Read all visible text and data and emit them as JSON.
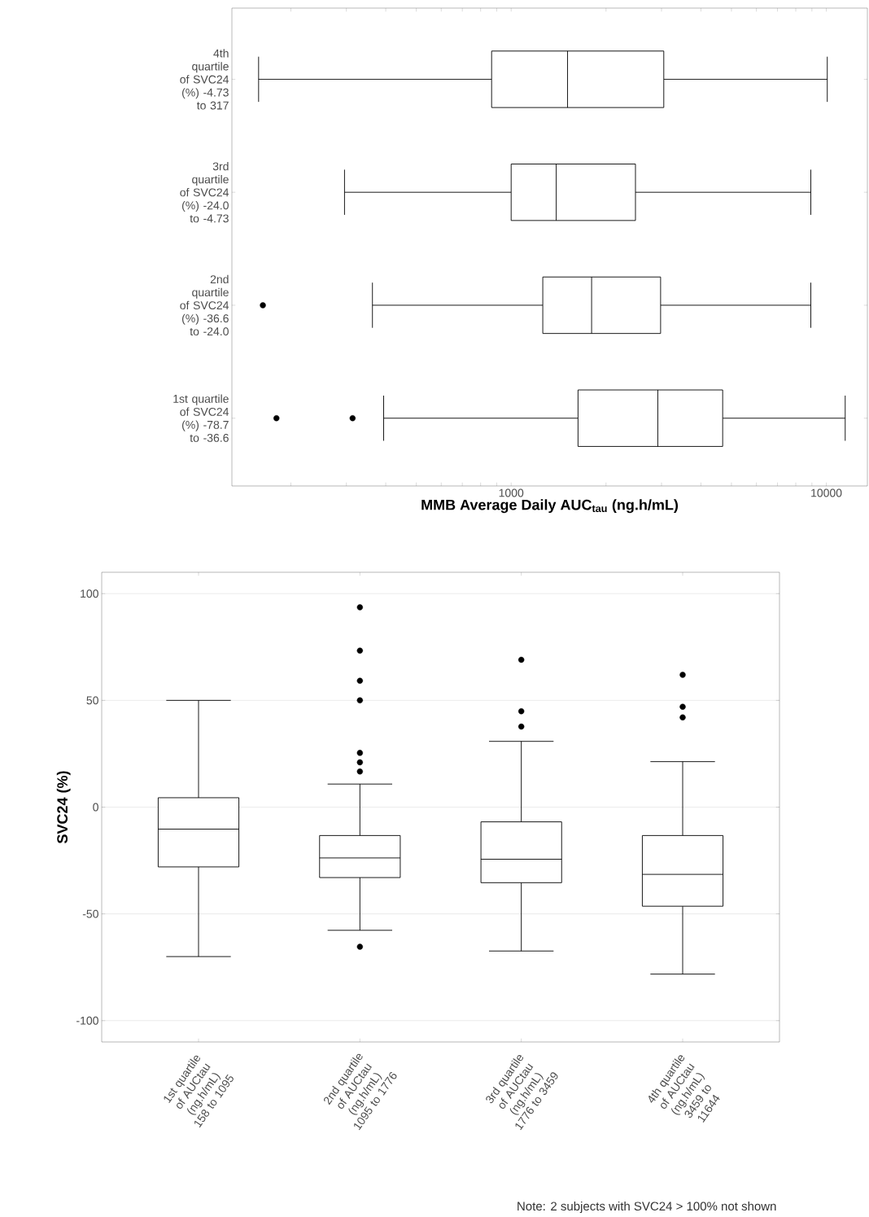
{
  "chart_data": [
    {
      "type": "box",
      "orientation": "horizontal",
      "log": "x",
      "grid": false,
      "xlabel": "MMB Average Daily AUC$_{tau}$ (ng.h/mL)",
      "categories": [
        "4th quartile of SVC24 (%) -4.73 to 317",
        "3rd quartile of SVC24 (%) -24.0 to -4.73",
        "2nd quartile of SVC24 (%) -36.6 to -24.0",
        "1st quartile of SVC24 (%) -78.7 to -36.6"
      ],
      "boxes": [
        {
          "low": 158,
          "q1": 867,
          "median": 1510,
          "q3": 3050,
          "high": 10070
        },
        {
          "low": 296,
          "q1": 1000,
          "median": 1390,
          "q3": 2480,
          "high": 8930
        },
        {
          "low": 363,
          "q1": 1260,
          "median": 1800,
          "q3": 2980,
          "high": 8930,
          "outliers": [
            163
          ]
        },
        {
          "low": 394,
          "q1": 1630,
          "median": 2920,
          "q3": 4690,
          "high": 11480,
          "outliers": [
            180,
            314
          ]
        }
      ],
      "xlim": [
        130,
        13500
      ],
      "xticks": [
        {
          "value": 200,
          "label": null
        },
        {
          "value": 300,
          "label": null
        },
        {
          "value": 400,
          "label": null
        },
        {
          "value": 500,
          "label": null
        },
        {
          "value": 600,
          "label": null
        },
        {
          "value": 700,
          "label": null
        },
        {
          "value": 800,
          "label": null
        },
        {
          "value": 900,
          "label": null
        },
        1000,
        {
          "value": 2000,
          "label": null
        },
        {
          "value": 3000,
          "label": null
        },
        {
          "value": 4000,
          "label": null
        },
        {
          "value": 5000,
          "label": null
        },
        {
          "value": 6000,
          "label": null
        },
        {
          "value": 7000,
          "label": null
        },
        {
          "value": 8000,
          "label": null
        },
        {
          "value": 9000,
          "label": null
        },
        10000
      ]
    },
    {
      "type": "box",
      "grid": "y",
      "ylabel": "SVC24 (%)",
      "categories": [
        "1st quartile of AUCtau (ng.h/mL) 158 to 1095",
        "2nd quartile of AUCtau (ng.h/mL) 1095 to 1776",
        "3rd quartile of AUCtau (ng.h/mL) 1776 to 3459",
        "4th quartile of AUCtau (ng.h/mL) 3459 to 11644"
      ],
      "boxes": [
        {
          "low": -70,
          "q1": -28,
          "median": -10.3,
          "q3": 4.4,
          "high": 50
        },
        {
          "low": -57.7,
          "q1": -33,
          "median": -23.8,
          "q3": -13.3,
          "high": 10.8,
          "outliers": [
            93.6,
            73.3,
            59.2,
            50,
            25.4,
            21,
            16.7,
            -65.4
          ]
        },
        {
          "low": -67.4,
          "q1": -35.4,
          "median": -24.4,
          "q3": -6.9,
          "high": 30.8,
          "outliers": [
            69,
            44.9,
            37.7
          ]
        },
        {
          "low": -78.2,
          "q1": -46.4,
          "median": -31.5,
          "q3": -13.3,
          "high": 21.3,
          "outliers": [
            62,
            47,
            42
          ]
        }
      ],
      "ylim": [
        -110,
        110
      ],
      "yticks": [
        -100,
        -50,
        0,
        50,
        100
      ],
      "annotations": [
        "Note: 2 subjects with SVC24 > 100% not shown"
      ]
    }
  ]
}
